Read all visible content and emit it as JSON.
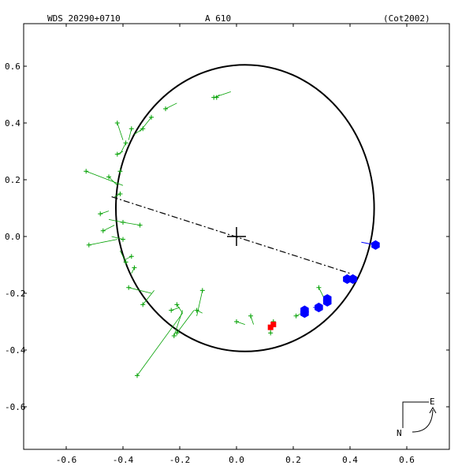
{
  "header": {
    "left": "WDS 20290+0710",
    "center": "A   610",
    "right": "(Cot2002)"
  },
  "compass": {
    "east": "E",
    "north": "N"
  },
  "colors": {
    "frame": "#000000",
    "orbit": "#000000",
    "obs": "#00a000",
    "speckle": "#0000ff",
    "special": "#ff0000"
  },
  "chart_data": {
    "type": "scatter",
    "xlim": [
      -0.75,
      0.75
    ],
    "ylim": [
      -0.75,
      0.75
    ],
    "x_ticks": [
      "-0.6",
      "-0.4",
      "-0.2",
      "0.0",
      "0.2",
      "0.4",
      "0.6"
    ],
    "y_ticks": [
      "0.6",
      "0.4",
      "0.2",
      "0.0",
      "-0.2",
      "-0.4",
      "-0.6"
    ],
    "orbit": {
      "center": [
        0.03,
        0.1
      ],
      "rx": 0.455,
      "ry": 0.505
    },
    "line_of_nodes": [
      [
        -0.44,
        0.14
      ],
      [
        0.4,
        -0.13
      ]
    ],
    "primary": [
      0.0,
      0.0
    ],
    "visual_obs": [
      {
        "p": [
          -0.53,
          0.23
        ],
        "o": [
          -0.4,
          0.18
        ]
      },
      {
        "p": [
          -0.52,
          -0.03
        ],
        "o": [
          -0.42,
          -0.01
        ]
      },
      {
        "p": [
          -0.48,
          0.08
        ],
        "o": [
          -0.45,
          0.09
        ]
      },
      {
        "p": [
          -0.47,
          0.02
        ],
        "o": [
          -0.43,
          0.04
        ]
      },
      {
        "p": [
          -0.45,
          0.21
        ],
        "o": [
          -0.42,
          0.18
        ]
      },
      {
        "p": [
          -0.42,
          0.4
        ],
        "o": [
          -0.4,
          0.34
        ]
      },
      {
        "p": [
          -0.42,
          0.29
        ],
        "o": [
          -0.4,
          0.3
        ]
      },
      {
        "p": [
          -0.41,
          0.23
        ],
        "o": [
          -0.41,
          0.24
        ]
      },
      {
        "p": [
          -0.41,
          0.15
        ],
        "o": [
          -0.43,
          0.14
        ]
      },
      {
        "p": [
          -0.4,
          0.05
        ],
        "o": [
          -0.45,
          0.06
        ]
      },
      {
        "p": [
          -0.4,
          -0.01
        ],
        "o": [
          -0.44,
          0.0
        ]
      },
      {
        "p": [
          -0.39,
          -0.09
        ],
        "o": [
          -0.41,
          -0.05
        ]
      },
      {
        "p": [
          -0.38,
          -0.18
        ],
        "o": [
          -0.3,
          -0.2
        ]
      },
      {
        "p": [
          -0.39,
          0.33
        ],
        "o": [
          -0.41,
          0.29
        ]
      },
      {
        "p": [
          -0.37,
          0.38
        ],
        "o": [
          -0.38,
          0.34
        ]
      },
      {
        "p": [
          -0.35,
          -0.49
        ],
        "o": [
          -0.19,
          -0.27
        ]
      },
      {
        "p": [
          -0.33,
          -0.24
        ],
        "o": [
          -0.29,
          -0.19
        ]
      },
      {
        "p": [
          -0.34,
          0.04
        ],
        "o": [
          -0.4,
          0.05
        ]
      },
      {
        "p": [
          -0.37,
          -0.07
        ],
        "o": [
          -0.39,
          -0.08
        ]
      },
      {
        "p": [
          -0.36,
          -0.11
        ],
        "o": [
          -0.37,
          -0.13
        ]
      },
      {
        "p": [
          -0.3,
          0.42
        ],
        "o": [
          -0.34,
          0.37
        ]
      },
      {
        "p": [
          -0.33,
          0.38
        ],
        "o": [
          -0.36,
          0.36
        ]
      },
      {
        "p": [
          -0.22,
          -0.35
        ],
        "o": [
          -0.19,
          -0.26
        ]
      },
      {
        "p": [
          -0.21,
          -0.34
        ],
        "o": [
          -0.15,
          -0.26
        ]
      },
      {
        "p": [
          -0.23,
          -0.26
        ],
        "o": [
          -0.2,
          -0.25
        ]
      },
      {
        "p": [
          -0.21,
          -0.24
        ],
        "o": [
          -0.19,
          -0.27
        ]
      },
      {
        "p": [
          -0.12,
          -0.19
        ],
        "o": [
          -0.14,
          -0.28
        ]
      },
      {
        "p": [
          -0.14,
          -0.26
        ],
        "o": [
          -0.12,
          -0.27
        ]
      },
      {
        "p": [
          -0.25,
          0.45
        ],
        "o": [
          -0.21,
          0.47
        ]
      },
      {
        "p": [
          -0.08,
          0.49
        ],
        "o": [
          -0.02,
          0.51
        ]
      },
      {
        "p": [
          -0.07,
          0.49
        ],
        "o": [
          -0.06,
          0.5
        ]
      },
      {
        "p": [
          0.0,
          -0.3
        ],
        "o": [
          0.03,
          -0.31
        ]
      },
      {
        "p": [
          0.05,
          -0.28
        ],
        "o": [
          0.06,
          -0.31
        ]
      },
      {
        "p": [
          0.12,
          -0.34
        ],
        "o": [
          0.12,
          -0.32
        ]
      },
      {
        "p": [
          0.13,
          -0.3
        ],
        "o": [
          0.13,
          -0.32
        ]
      },
      {
        "p": [
          0.21,
          -0.28
        ],
        "o": [
          0.23,
          -0.27
        ]
      },
      {
        "p": [
          0.29,
          -0.18
        ],
        "o": [
          0.31,
          -0.22
        ]
      }
    ],
    "speckle_obs": [
      {
        "p": [
          0.49,
          -0.03
        ],
        "o": [
          0.44,
          -0.02
        ]
      },
      {
        "p": [
          0.41,
          -0.15
        ],
        "o": [
          0.4,
          -0.14
        ]
      },
      {
        "p": [
          0.39,
          -0.15
        ],
        "o": [
          0.39,
          -0.15
        ]
      },
      {
        "p": [
          0.32,
          -0.23
        ],
        "o": [
          0.32,
          -0.22
        ]
      },
      {
        "p": [
          0.32,
          -0.22
        ],
        "o": [
          0.32,
          -0.22
        ]
      },
      {
        "p": [
          0.29,
          -0.25
        ],
        "o": [
          0.27,
          -0.25
        ]
      },
      {
        "p": [
          0.24,
          -0.27
        ],
        "o": [
          0.24,
          -0.27
        ]
      },
      {
        "p": [
          0.24,
          -0.26
        ],
        "o": [
          0.24,
          -0.27
        ]
      }
    ],
    "special_obs": [
      {
        "p": [
          0.12,
          -0.32
        ],
        "o": [
          0.12,
          -0.32
        ]
      },
      {
        "p": [
          0.13,
          -0.31
        ],
        "o": [
          0.13,
          -0.32
        ]
      }
    ]
  }
}
